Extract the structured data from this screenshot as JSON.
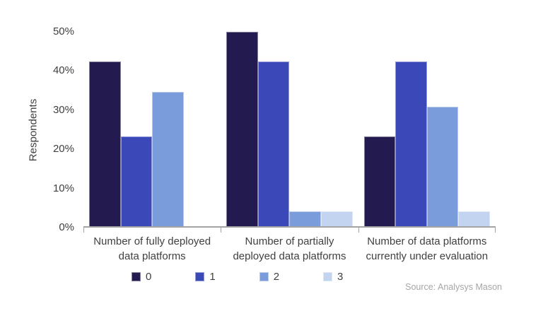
{
  "chart_data": {
    "type": "bar",
    "title": "",
    "xlabel": "",
    "ylabel": "Respondents",
    "categories": [
      "Number of fully deployed\ndata platforms",
      "Number of partially\ndeployed data platforms",
      "Number of data platforms\ncurrently under evaluation"
    ],
    "series": [
      {
        "name": "0",
        "color": "#231a4f",
        "values": [
          42.3,
          50.0,
          23.1
        ]
      },
      {
        "name": "1",
        "color": "#3b49b8",
        "values": [
          23.1,
          42.3,
          42.3
        ]
      },
      {
        "name": "2",
        "color": "#7b9cdb",
        "values": [
          34.6,
          3.8,
          30.8
        ]
      },
      {
        "name": "3",
        "color": "#c3d4f1",
        "values": [
          0,
          3.8,
          3.8
        ]
      }
    ],
    "ylim": [
      0,
      50
    ],
    "yticks": [
      {
        "label": "0%",
        "value": 0
      },
      {
        "label": "10%",
        "value": 10
      },
      {
        "label": "20%",
        "value": 20
      },
      {
        "label": "30%",
        "value": 30
      },
      {
        "label": "40%",
        "value": 40
      },
      {
        "label": "50%",
        "value": 50
      }
    ],
    "grid": false,
    "legend_position": "bottom"
  },
  "source": "Source: Analysys Mason",
  "colors": {
    "axis_line": "#a3a3a3",
    "text": "#404040",
    "source_text": "#a6a6a6"
  }
}
